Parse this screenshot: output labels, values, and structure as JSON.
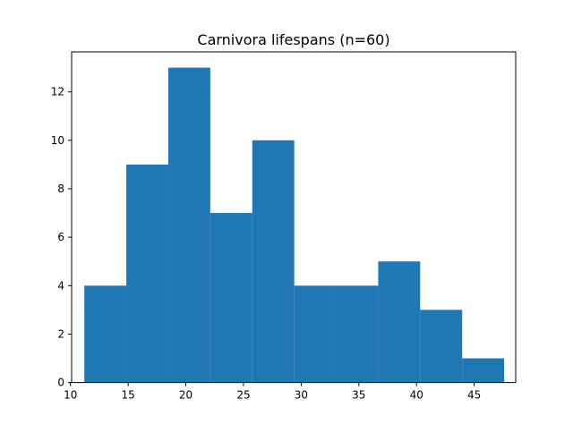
{
  "chart_data": {
    "type": "bar",
    "title": "Carnivora lifespans (n=60)",
    "xlabel": "",
    "ylabel": "",
    "xlim": [
      10.1,
      48.6
    ],
    "ylim": [
      0,
      13.65
    ],
    "bin_edges": [
      11.2,
      14.84,
      18.48,
      22.12,
      25.76,
      29.4,
      33.04,
      36.68,
      40.32,
      43.96,
      47.6
    ],
    "counts": [
      4,
      9,
      13,
      7,
      10,
      4,
      4,
      5,
      3,
      1
    ],
    "x_ticks": [
      10,
      15,
      20,
      25,
      30,
      35,
      40,
      45
    ],
    "y_ticks": [
      0,
      2,
      4,
      6,
      8,
      10,
      12
    ],
    "bar_color": "#1f77b4",
    "grid": false
  }
}
